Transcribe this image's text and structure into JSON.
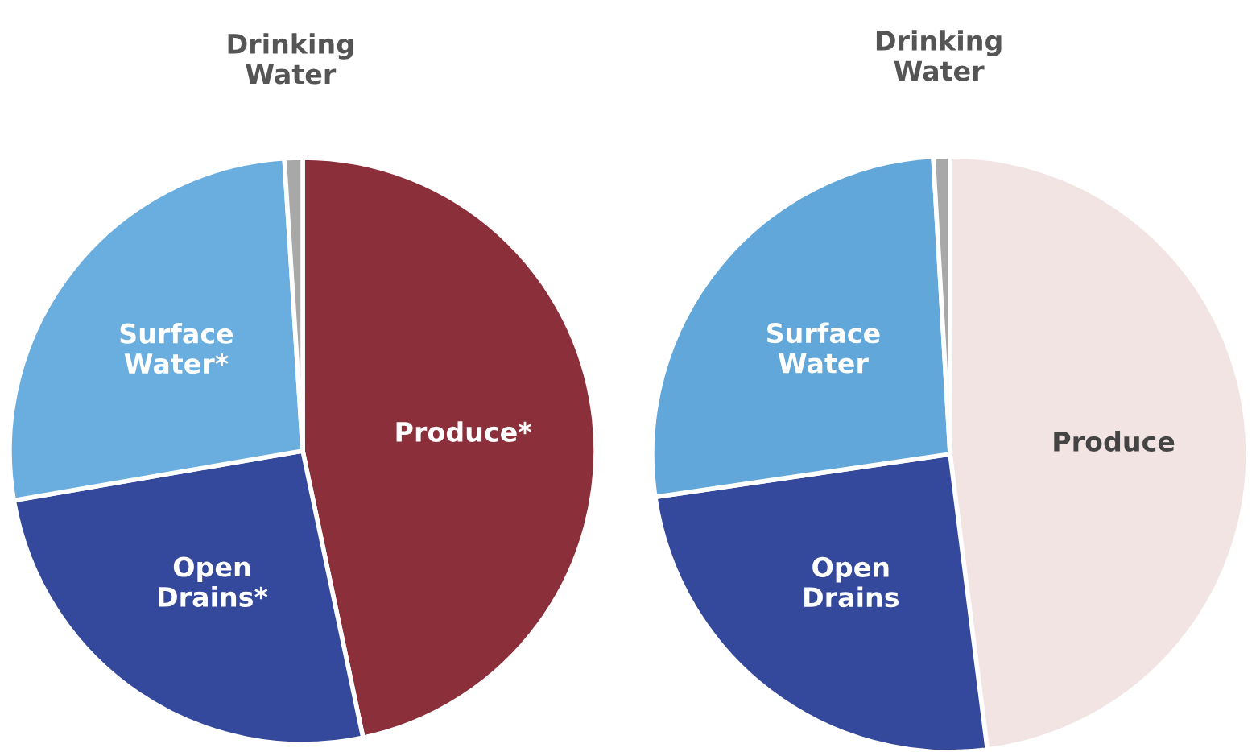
{
  "chart_data": [
    {
      "type": "pie",
      "categories": [
        "Produce*",
        "Open Drains*",
        "Surface Water*",
        "Drinking Water"
      ],
      "values": [
        46.7,
        25.6,
        26.7,
        1.0
      ],
      "colors": [
        "#8b2f3a",
        "#34499c",
        "#6aaee0",
        "#a8a8a8"
      ]
    },
    {
      "type": "pie",
      "categories": [
        "Produce",
        "Open Drains",
        "Surface Water",
        "Drinking Water"
      ],
      "values": [
        48.0,
        24.7,
        26.4,
        0.9
      ],
      "colors": [
        "#f3e4e4",
        "#34499c",
        "#62a7d9",
        "#a8a8a8"
      ]
    }
  ]
}
